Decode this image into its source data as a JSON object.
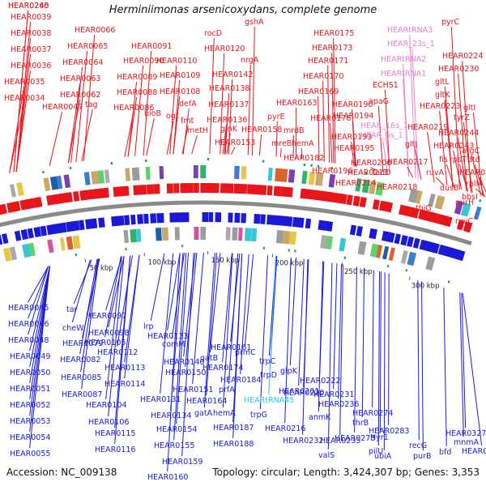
{
  "title": "Herminiimonas arsenicoxydans, complete genome",
  "accession": "Accession: NC_009138",
  "topology": "Topology: circular; Length: 3,424,307 bp; Genes: 3,353",
  "colors": {
    "top_strand": "#e8151b",
    "bottom_strand": "#1a1ad6",
    "rna": "#e87fd0",
    "cyan_label": "#2ec3ea",
    "backbone": "#8a8a8a"
  },
  "scale_ticks": [
    "50 kbp",
    "100 kbp",
    "150 kbp",
    "200 kbp",
    "250 kbp",
    "300 kbp"
  ],
  "top_labels": [
    {
      "text": "HEAR0039",
      "color": "red"
    },
    {
      "text": "HEAR0038",
      "color": "red"
    },
    {
      "text": "HEAR0037",
      "color": "red"
    },
    {
      "text": "HEAR0036",
      "color": "red"
    },
    {
      "text": "HEAR0035",
      "color": "red"
    },
    {
      "text": "HEAR0034",
      "color": "red"
    },
    {
      "text": "HEAR0047",
      "color": "red"
    },
    {
      "text": "HEAR0066",
      "color": "red"
    },
    {
      "text": "HEAR0065",
      "color": "red"
    },
    {
      "text": "HEAR0064",
      "color": "red"
    },
    {
      "text": "HEAR0063",
      "color": "red"
    },
    {
      "text": "HEAR0062",
      "color": "red"
    },
    {
      "text": "tag",
      "color": "red"
    },
    {
      "text": "HEAR0091",
      "color": "red"
    },
    {
      "text": "HEAR0090",
      "color": "red"
    },
    {
      "text": "HEAR0089",
      "color": "red"
    },
    {
      "text": "HEAR0088",
      "color": "red"
    },
    {
      "text": "HEAR0086",
      "color": "red"
    },
    {
      "text": "bioB",
      "color": "red"
    },
    {
      "text": "HEAR0110",
      "color": "red"
    },
    {
      "text": "HEAR0109",
      "color": "red"
    },
    {
      "text": "HEAR0108",
      "color": "red"
    },
    {
      "text": "ogt",
      "color": "red"
    },
    {
      "text": "defA",
      "color": "red"
    },
    {
      "text": "fmt",
      "color": "red"
    },
    {
      "text": "metH",
      "color": "red"
    },
    {
      "text": "rocD",
      "color": "red"
    },
    {
      "text": "HEAR0120",
      "color": "red"
    },
    {
      "text": "gshA",
      "color": "red"
    },
    {
      "text": "nrgA",
      "color": "red"
    },
    {
      "text": "HEAR0142",
      "color": "red"
    },
    {
      "text": "HEAR0138",
      "color": "red"
    },
    {
      "text": "HEAR0137",
      "color": "red"
    },
    {
      "text": "HEAR0136",
      "color": "red"
    },
    {
      "text": "glnK",
      "color": "red"
    },
    {
      "text": "HEAR0158",
      "color": "red"
    },
    {
      "text": "HEAR0153",
      "color": "red"
    },
    {
      "text": "HEAR0175",
      "color": "red"
    },
    {
      "text": "HEAR0173",
      "color": "red"
    },
    {
      "text": "HEAR0171",
      "color": "red"
    },
    {
      "text": "HEAR0170",
      "color": "red"
    },
    {
      "text": "HEAR0169",
      "color": "red"
    },
    {
      "text": "HEAR0163",
      "color": "red"
    },
    {
      "text": "pyrE",
      "color": "red"
    },
    {
      "text": "HEAR0176",
      "color": "red"
    },
    {
      "text": "mrdB",
      "color": "red"
    },
    {
      "text": "mreB",
      "color": "red"
    },
    {
      "text": "hemA",
      "color": "red"
    },
    {
      "text": "HEAR0182",
      "color": "red"
    },
    {
      "text": "HEARtRNA3",
      "color": "pink"
    },
    {
      "text": "HEAR_23s_1",
      "color": "pink"
    },
    {
      "text": "HEARtRNA2",
      "color": "pink"
    },
    {
      "text": "HEARtRNA1",
      "color": "pink"
    },
    {
      "text": "ECHS1",
      "color": "red"
    },
    {
      "text": "HEAR0190",
      "color": "red"
    },
    {
      "text": "apaG",
      "color": "red"
    },
    {
      "text": "HEAR0194",
      "color": "red"
    },
    {
      "text": "HEAR_16s_1",
      "color": "pink"
    },
    {
      "text": "HEAR_5s_1",
      "color": "pink"
    },
    {
      "text": "HEAR0193",
      "color": "red"
    },
    {
      "text": "HEAR0195",
      "color": "red"
    },
    {
      "text": "HEAR0206",
      "color": "red"
    },
    {
      "text": "HEAR0196",
      "color": "red"
    },
    {
      "text": "HEAR0214",
      "color": "red"
    },
    {
      "text": "HEAR0213",
      "color": "red"
    },
    {
      "text": "fadD",
      "color": "red"
    },
    {
      "text": "HEAR0217",
      "color": "red"
    },
    {
      "text": "HEAR0218",
      "color": "red"
    },
    {
      "text": "pyrC",
      "color": "red"
    },
    {
      "text": "HEAR0224",
      "color": "red"
    },
    {
      "text": "HEAR0230",
      "color": "red"
    },
    {
      "text": "gltL",
      "color": "red"
    },
    {
      "text": "gltK",
      "color": "red"
    },
    {
      "text": "HEAR0223",
      "color": "red"
    },
    {
      "text": "HEAR0219",
      "color": "red"
    },
    {
      "text": "gltJ",
      "color": "red"
    },
    {
      "text": "gltI",
      "color": "red"
    },
    {
      "text": "tyrZ",
      "color": "red"
    },
    {
      "text": "HEAR0244",
      "color": "red"
    },
    {
      "text": "HEAR0243",
      "color": "red"
    },
    {
      "text": "argC",
      "color": "red"
    },
    {
      "text": "fis",
      "color": "red"
    },
    {
      "text": "rpsT",
      "color": "red"
    },
    {
      "text": "dtd",
      "color": "red"
    },
    {
      "text": "ruvA",
      "color": "red"
    },
    {
      "text": "HEAR0238",
      "color": "red"
    },
    {
      "text": "dusB",
      "color": "red"
    },
    {
      "text": "rplM",
      "color": "red"
    },
    {
      "text": "bbsI",
      "color": "red"
    },
    {
      "text": "purH",
      "color": "red"
    },
    {
      "text": "thiG",
      "color": "red"
    },
    {
      "text": "ruvC",
      "color": "red"
    },
    {
      "text": "HEAR0245",
      "color": "red"
    },
    {
      "text": "HEAR0260",
      "color": "red"
    }
  ],
  "bottom_labels": [
    {
      "text": "HEAR0045",
      "color": "blue"
    },
    {
      "text": "HEAR0046",
      "color": "blue"
    },
    {
      "text": "HEAR0048",
      "color": "blue"
    },
    {
      "text": "HEAR0049",
      "color": "blue"
    },
    {
      "text": "HEAR0050",
      "color": "blue"
    },
    {
      "text": "HEAR0051",
      "color": "blue"
    },
    {
      "text": "HEAR0052",
      "color": "blue"
    },
    {
      "text": "HEAR0053",
      "color": "blue"
    },
    {
      "text": "HEAR0054",
      "color": "blue"
    },
    {
      "text": "HEAR0055",
      "color": "blue"
    },
    {
      "text": "tar",
      "color": "blue"
    },
    {
      "text": "cheW",
      "color": "blue"
    },
    {
      "text": "HEAR0079",
      "color": "blue"
    },
    {
      "text": "HEAR0082",
      "color": "blue"
    },
    {
      "text": "HEAR0085",
      "color": "blue"
    },
    {
      "text": "HEAR0087",
      "color": "blue"
    },
    {
      "text": "HEAR0104",
      "color": "blue"
    },
    {
      "text": "HEAR0106",
      "color": "blue"
    },
    {
      "text": "HEAR0115",
      "color": "blue"
    },
    {
      "text": "HEAR0116",
      "color": "blue"
    },
    {
      "text": "HEAR0097",
      "color": "blue"
    },
    {
      "text": "HEAR0098",
      "color": "blue"
    },
    {
      "text": "HEAR0105",
      "color": "blue"
    },
    {
      "text": "HEAR0112",
      "color": "blue"
    },
    {
      "text": "HEAR0113",
      "color": "blue"
    },
    {
      "text": "HEAR0114",
      "color": "blue"
    },
    {
      "text": "lrp",
      "color": "blue"
    },
    {
      "text": "HEAR0133",
      "color": "blue"
    },
    {
      "text": "comM",
      "color": "blue"
    },
    {
      "text": "HEAR0140",
      "color": "blue"
    },
    {
      "text": "HEAR0131",
      "color": "blue"
    },
    {
      "text": "HEAR0134",
      "color": "blue"
    },
    {
      "text": "HEAR0151",
      "color": "blue"
    },
    {
      "text": "HEAR0150",
      "color": "blue"
    },
    {
      "text": "HEAR0154",
      "color": "blue"
    },
    {
      "text": "HEAR0155",
      "color": "blue"
    },
    {
      "text": "HEAR0159",
      "color": "blue"
    },
    {
      "text": "HEAR0160",
      "color": "blue"
    },
    {
      "text": "HEAR0161",
      "color": "blue"
    },
    {
      "text": "gatB",
      "color": "blue"
    },
    {
      "text": "HEAR0174",
      "color": "blue"
    },
    {
      "text": "HEAR0164",
      "color": "blue"
    },
    {
      "text": "gatA",
      "color": "blue"
    },
    {
      "text": "HEAR0184",
      "color": "blue"
    },
    {
      "text": "prfA",
      "color": "blue"
    },
    {
      "text": "hemA",
      "color": "blue"
    },
    {
      "text": "HEAR0187",
      "color": "blue"
    },
    {
      "text": "HEAR0188",
      "color": "blue"
    },
    {
      "text": "prmC",
      "color": "blue"
    },
    {
      "text": "trpC",
      "color": "blue"
    },
    {
      "text": "trpD",
      "color": "blue"
    },
    {
      "text": "HEARtRNA45",
      "color": "cyan"
    },
    {
      "text": "HEAR0201",
      "color": "blue"
    },
    {
      "text": "trpG",
      "color": "blue"
    },
    {
      "text": "glpK",
      "color": "blue"
    },
    {
      "text": "HEAR0222",
      "color": "blue"
    },
    {
      "text": "HEAR0220",
      "color": "blue"
    },
    {
      "text": "HEAR0231",
      "color": "blue"
    },
    {
      "text": "HEAR0236",
      "color": "blue"
    },
    {
      "text": "HEAR0216",
      "color": "blue"
    },
    {
      "text": "anmK",
      "color": "blue"
    },
    {
      "text": "HEAR0232",
      "color": "blue"
    },
    {
      "text": "HEAR0233",
      "color": "blue"
    },
    {
      "text": "HEAR0273",
      "color": "blue"
    },
    {
      "text": "valS",
      "color": "blue"
    },
    {
      "text": "HEAR0274",
      "color": "blue"
    },
    {
      "text": "thrB",
      "color": "blue"
    },
    {
      "text": "HEAR0283",
      "color": "blue"
    },
    {
      "text": "Hyr1",
      "color": "blue"
    },
    {
      "text": "pilU",
      "color": "blue"
    },
    {
      "text": "ubiA",
      "color": "blue"
    },
    {
      "text": "recG",
      "color": "blue"
    },
    {
      "text": "purB",
      "color": "blue"
    },
    {
      "text": "bfd",
      "color": "blue"
    },
    {
      "text": "mnmA",
      "color": "blue"
    },
    {
      "text": "HEAR0327",
      "color": "blue"
    },
    {
      "text": "HEAR0331",
      "color": "blue"
    }
  ]
}
